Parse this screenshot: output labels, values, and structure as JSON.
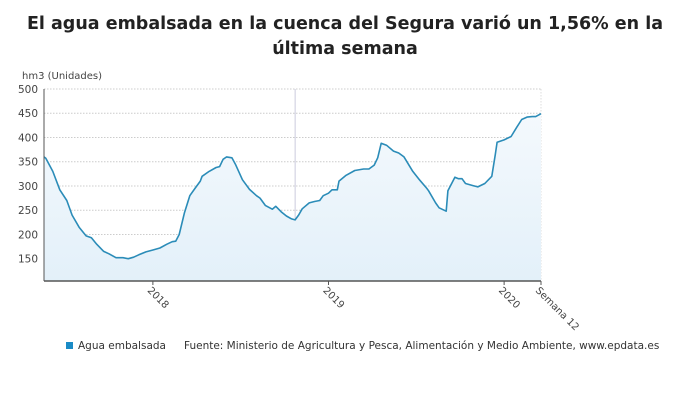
{
  "title": "El agua embalsada en la cuenca del Segura varió un 1,56% en la última semana",
  "legend": {
    "series_label": "Agua embalsada",
    "source": "Fuente: Ministerio de Agricultura y Pesca, Alimentación y Medio Ambiente, www.epdata.es"
  },
  "colors": {
    "line": "#2b8cb8",
    "fill_top": "#f4f9fd",
    "fill_bottom": "#e3f0f9",
    "legend_swatch": "#1a8bc6"
  },
  "chart_data": {
    "type": "area",
    "title": "El agua embalsada en la cuenca del Segura varió un 1,56% en la última semana",
    "ylabel": "hm3 (Unidades)",
    "xlabel": "",
    "ylim": [
      104,
      500
    ],
    "xlim": [
      2017.38,
      2020.21
    ],
    "yticks": [
      150,
      200,
      250,
      300,
      350,
      400,
      450,
      500
    ],
    "xticks": [
      {
        "x": 2018,
        "label": "2018"
      },
      {
        "x": 2019,
        "label": "2019"
      },
      {
        "x": 2020,
        "label": "2020"
      },
      {
        "x": 2020.21,
        "label": "Semana 12"
      }
    ],
    "reference_line_x": 2018.81,
    "grid": true,
    "legend_position": "bottom-left",
    "series": [
      {
        "name": "Agua embalsada",
        "x": [
          2017.38,
          2017.39,
          2017.43,
          2017.47,
          2017.51,
          2017.54,
          2017.58,
          2017.62,
          2017.65,
          2017.68,
          2017.72,
          2017.75,
          2017.79,
          2017.83,
          2017.86,
          2017.89,
          2017.92,
          2017.96,
          2018.0,
          2018.04,
          2018.08,
          2018.11,
          2018.13,
          2018.15,
          2018.18,
          2018.21,
          2018.24,
          2018.27,
          2018.28,
          2018.32,
          2018.36,
          2018.38,
          2018.4,
          2018.42,
          2018.45,
          2018.47,
          2018.51,
          2018.55,
          2018.59,
          2018.61,
          2018.64,
          2018.66,
          2018.68,
          2018.7,
          2018.73,
          2018.76,
          2018.79,
          2018.81,
          2018.83,
          2018.85,
          2018.89,
          2018.92,
          2018.95,
          2018.97,
          2019.0,
          2019.02,
          2019.05,
          2019.06,
          2019.1,
          2019.15,
          2019.2,
          2019.23,
          2019.26,
          2019.28,
          2019.3,
          2019.33,
          2019.37,
          2019.4,
          2019.43,
          2019.48,
          2019.52,
          2019.56,
          2019.57,
          2019.61,
          2019.63,
          2019.67,
          2019.68,
          2019.72,
          2019.74,
          2019.76,
          2019.78,
          2019.82,
          2019.85,
          2019.89,
          2019.93,
          2019.95,
          2019.96,
          2020.0,
          2020.04,
          2020.07,
          2020.1,
          2020.13,
          2020.16,
          2020.18,
          2020.21
        ],
        "values": [
          360,
          357,
          330,
          292,
          270,
          240,
          215,
          197,
          193,
          180,
          165,
          160,
          152,
          152,
          150,
          153,
          158,
          164,
          168,
          172,
          180,
          185,
          186,
          200,
          245,
          280,
          295,
          310,
          320,
          330,
          338,
          340,
          355,
          360,
          358,
          345,
          313,
          293,
          280,
          275,
          260,
          256,
          252,
          258,
          247,
          238,
          232,
          230,
          240,
          253,
          265,
          268,
          270,
          280,
          285,
          292,
          292,
          310,
          322,
          332,
          335,
          335,
          343,
          358,
          388,
          384,
          372,
          368,
          360,
          330,
          312,
          295,
          290,
          265,
          255,
          248,
          290,
          318,
          315,
          315,
          305,
          301,
          298,
          305,
          320,
          365,
          390,
          395,
          402,
          420,
          437,
          442,
          443,
          443,
          449
        ]
      }
    ]
  }
}
